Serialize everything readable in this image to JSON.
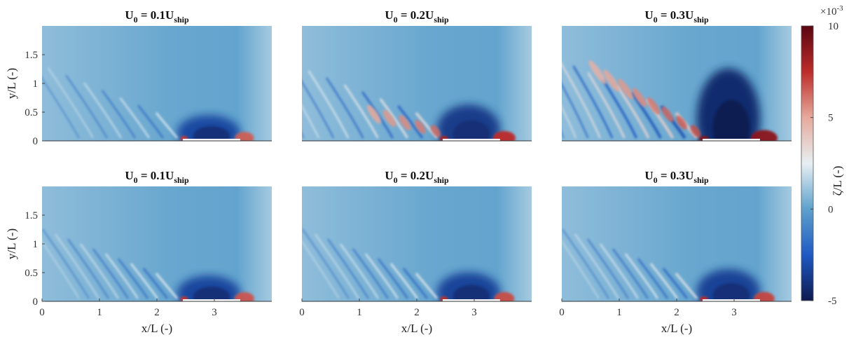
{
  "chart_data": {
    "type": "heatmap",
    "grid": {
      "rows": 2,
      "cols": 3
    },
    "panels": [
      {
        "row": 0,
        "col": 0,
        "title_main": "U",
        "title_sub0": "0",
        "title_mid": " = 0.1U",
        "title_sub1": "ship",
        "u_ratio": 0.1,
        "case": "upper"
      },
      {
        "row": 0,
        "col": 1,
        "title_main": "U",
        "title_sub0": "0",
        "title_mid": " = 0.2U",
        "title_sub1": "ship",
        "u_ratio": 0.2,
        "case": "upper"
      },
      {
        "row": 0,
        "col": 2,
        "title_main": "U",
        "title_sub0": "0",
        "title_mid": " = 0.3U",
        "title_sub1": "ship",
        "u_ratio": 0.3,
        "case": "upper"
      },
      {
        "row": 1,
        "col": 0,
        "title_main": "U",
        "title_sub0": "0",
        "title_mid": " = 0.1U",
        "title_sub1": "ship",
        "u_ratio": 0.1,
        "case": "lower"
      },
      {
        "row": 1,
        "col": 1,
        "title_main": "U",
        "title_sub0": "0",
        "title_mid": " = 0.2U",
        "title_sub1": "ship",
        "u_ratio": 0.2,
        "case": "lower"
      },
      {
        "row": 1,
        "col": 2,
        "title_main": "U",
        "title_sub0": "0",
        "title_mid": " = 0.3U",
        "title_sub1": "ship",
        "u_ratio": 0.3,
        "case": "lower"
      }
    ],
    "xlabel": "x/L (-)",
    "ylabel": "y/L (-)",
    "xlim": [
      0,
      4
    ],
    "ylim": [
      0,
      2
    ],
    "xticks": [
      0,
      1,
      2,
      3
    ],
    "yticks": [
      0,
      0.5,
      1,
      1.5
    ],
    "hull": {
      "x_start": 2.45,
      "x_end": 3.45,
      "y": 0
    },
    "colorbar": {
      "label": "ζ/L (-)",
      "range": [
        -5,
        10
      ],
      "ticks": [
        -5,
        0,
        5,
        10
      ],
      "exponent_text": "×10",
      "exponent_power": "-3",
      "colors": [
        {
          "v": -5,
          "c": "#0d1a4f"
        },
        {
          "v": -2.5,
          "c": "#1f59c4"
        },
        {
          "v": 0,
          "c": "#5ea1cc"
        },
        {
          "v": 2.5,
          "c": "#e7eff3"
        },
        {
          "v": 5,
          "c": "#e6a99b"
        },
        {
          "v": 7.5,
          "c": "#bd2c2a"
        },
        {
          "v": 10,
          "c": "#5a0510"
        }
      ]
    }
  }
}
